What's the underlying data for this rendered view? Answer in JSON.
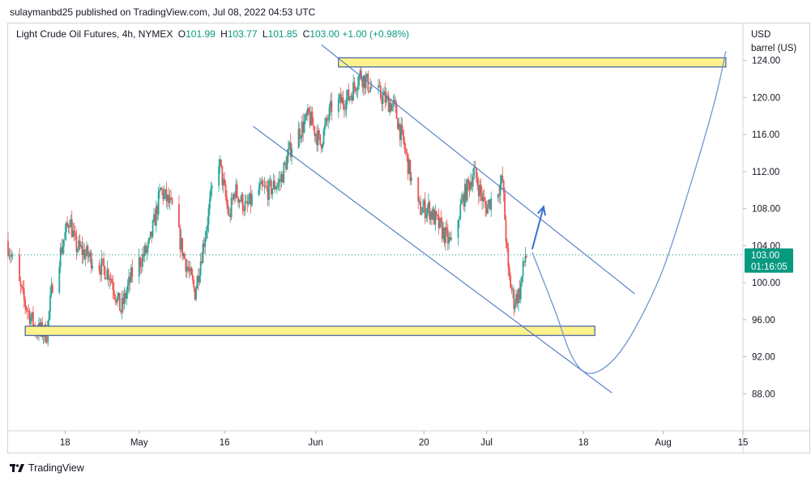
{
  "publish_line": "sulaymanbd25 published on TradingView.com, Jul 08, 2022 04:53 UTC",
  "symbol": {
    "name": "Light Crude Oil Futures, 4h, NYMEX",
    "open_label": "O",
    "open": "101.99",
    "high_label": "H",
    "high": "103.77",
    "low_label": "L",
    "low": "101.85",
    "close_label": "C",
    "close": "103.00",
    "change": "+1.00 (+0.98%)"
  },
  "unit": {
    "currency": "USD",
    "per": "barrel (US)"
  },
  "price_tag": {
    "price": "103.00",
    "countdown": "01:16:05"
  },
  "footer": {
    "brand": "TradingView"
  },
  "colors": {
    "up": "#26a69a",
    "down": "#ef5350",
    "channel": "#4a77c9",
    "zone_fill": "#fdf28b",
    "zone_stroke": "#1e3f9a",
    "projection": "#6f97d2",
    "price_tag": "#089981",
    "dotted_price": "#089981"
  },
  "chart_data": {
    "type": "candlestick",
    "y_axis": {
      "min": 84,
      "max": 128,
      "ticks": [
        "88.00",
        "92.00",
        "96.00",
        "100.00",
        "104.00",
        "108.00",
        "112.00",
        "116.00",
        "120.00",
        "124.00"
      ]
    },
    "x_ticks": [
      {
        "label": "18",
        "date": "2022-04-18"
      },
      {
        "label": "May",
        "date": "2022-05-01"
      },
      {
        "label": "16",
        "date": "2022-05-16"
      },
      {
        "label": "Jun",
        "date": "2022-06-01"
      },
      {
        "label": "20",
        "date": "2022-06-20"
      },
      {
        "label": "Jul",
        "date": "2022-07-01"
      },
      {
        "label": "18",
        "date": "2022-07-18"
      },
      {
        "label": "Aug",
        "date": "2022-08-01"
      },
      {
        "label": "15",
        "date": "2022-08-15"
      }
    ],
    "x_range": [
      "2022-04-08",
      "2022-08-15"
    ],
    "price_path": [
      [
        "2022-04-08",
        104.5
      ],
      [
        "2022-04-11",
        98
      ],
      [
        "2022-04-13",
        95
      ],
      [
        "2022-04-15",
        94.5
      ],
      [
        "2022-04-16",
        100
      ],
      [
        "2022-04-19",
        107
      ],
      [
        "2022-04-20",
        104
      ],
      [
        "2022-04-22",
        103
      ],
      [
        "2022-04-24",
        102
      ],
      [
        "2022-04-26",
        101
      ],
      [
        "2022-04-28",
        97
      ],
      [
        "2022-04-30",
        101
      ],
      [
        "2022-05-03",
        104
      ],
      [
        "2022-05-05",
        110
      ],
      [
        "2022-05-07",
        108
      ],
      [
        "2022-05-09",
        103
      ],
      [
        "2022-05-11",
        99
      ],
      [
        "2022-05-13",
        106
      ],
      [
        "2022-05-15",
        114
      ],
      [
        "2022-05-17",
        107
      ],
      [
        "2022-05-18",
        110
      ],
      [
        "2022-05-20",
        108
      ],
      [
        "2022-05-22",
        110
      ],
      [
        "2022-05-24",
        110
      ],
      [
        "2022-05-26",
        111
      ],
      [
        "2022-05-28",
        115
      ],
      [
        "2022-05-31",
        118
      ],
      [
        "2022-06-02",
        115
      ],
      [
        "2022-06-04",
        119
      ],
      [
        "2022-06-07",
        120
      ],
      [
        "2022-06-09",
        122.5
      ],
      [
        "2022-06-11",
        121
      ],
      [
        "2022-06-13",
        120
      ],
      [
        "2022-06-15",
        119
      ],
      [
        "2022-06-17",
        114
      ],
      [
        "2022-06-19",
        108
      ],
      [
        "2022-06-21",
        108
      ],
      [
        "2022-06-23",
        106
      ],
      [
        "2022-06-25",
        104
      ],
      [
        "2022-06-27",
        109
      ],
      [
        "2022-06-29",
        112
      ],
      [
        "2022-07-01",
        108
      ],
      [
        "2022-07-03",
        110
      ],
      [
        "2022-07-04",
        111
      ],
      [
        "2022-07-05",
        101
      ],
      [
        "2022-07-06",
        98
      ],
      [
        "2022-07-07",
        99
      ],
      [
        "2022-07-08",
        103
      ]
    ],
    "channel_upper": [
      [
        "2022-06-02",
        125.7
      ],
      [
        "2022-07-27",
        98.8
      ]
    ],
    "channel_lower": [
      [
        "2022-05-21",
        116.9
      ],
      [
        "2022-07-23",
        88.1
      ]
    ],
    "zone_top": {
      "from": "2022-06-05",
      "to": "2022-08-12",
      "low": 123.3,
      "high": 124.3
    },
    "zone_bottom": {
      "from": "2022-04-11",
      "to": "2022-07-20",
      "low": 94.3,
      "high": 95.3
    },
    "arrow": {
      "from": [
        "2022-07-09",
        103.6
      ],
      "to": [
        "2022-07-11",
        108.2
      ]
    },
    "projection": [
      [
        "2022-07-09",
        103.3
      ],
      [
        "2022-07-13",
        97
      ],
      [
        "2022-07-16",
        92
      ],
      [
        "2022-07-19",
        90.2
      ],
      [
        "2022-07-23",
        91.5
      ],
      [
        "2022-07-27",
        95
      ],
      [
        "2022-08-01",
        101.5
      ],
      [
        "2022-08-06",
        111
      ],
      [
        "2022-08-10",
        119.5
      ],
      [
        "2022-08-12",
        125
      ]
    ],
    "last_price": 103.0
  }
}
